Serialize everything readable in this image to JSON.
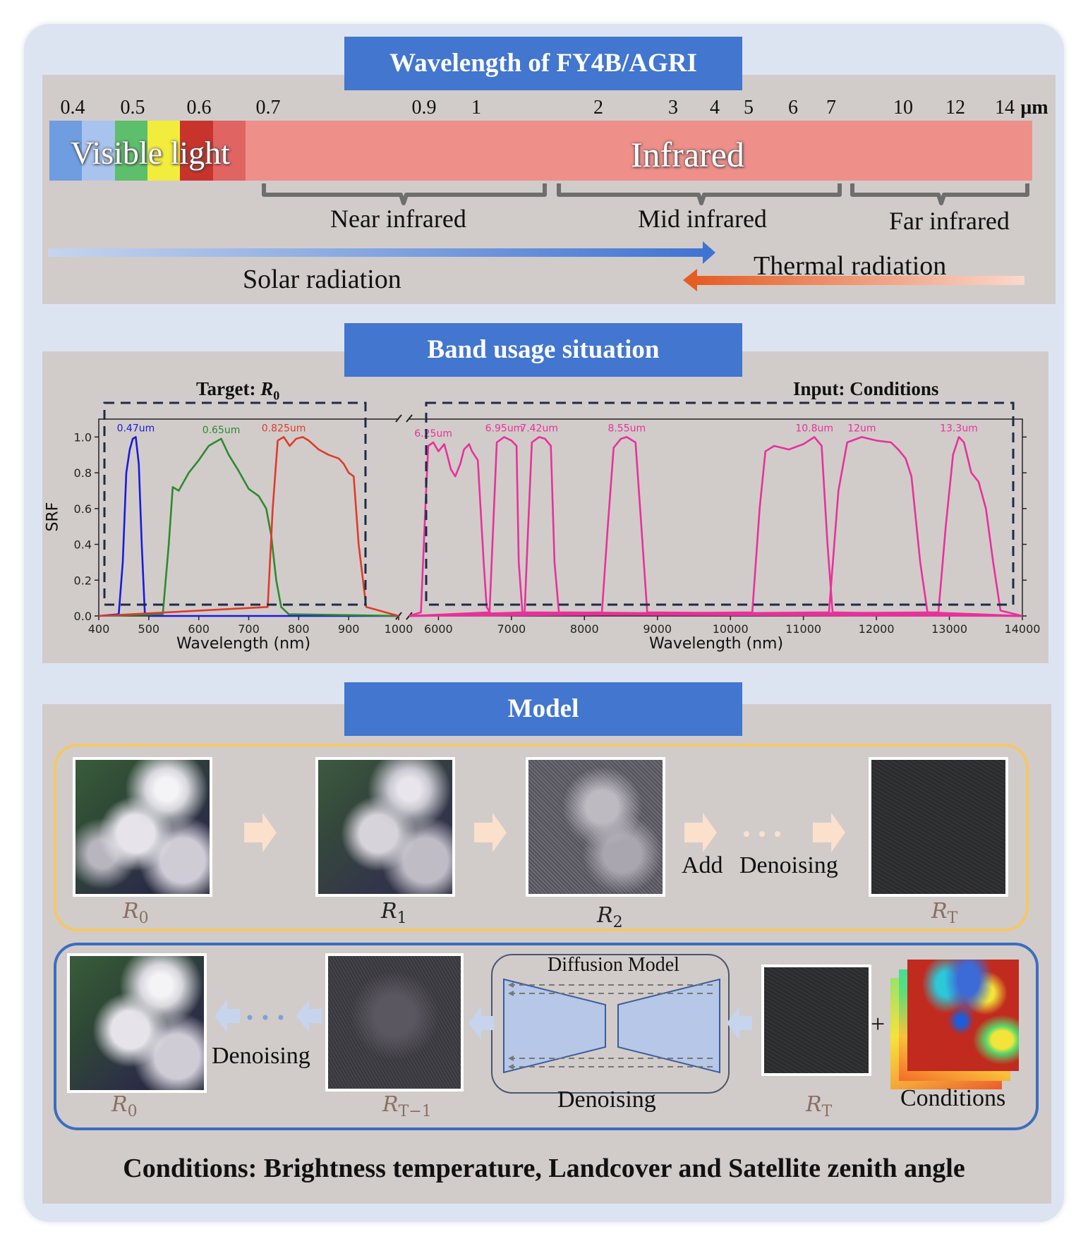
{
  "section1": {
    "title": "Wavelength of FY4B/AGRI",
    "ticks": [
      {
        "label": "0.4",
        "pos": 0.4
      },
      {
        "label": "0.5",
        "pos": 0.5
      },
      {
        "label": "0.6",
        "pos": 0.6
      },
      {
        "label": "0.7",
        "pos": 0.7
      },
      {
        "label": "0.9",
        "pos": 0.9
      },
      {
        "label": "1",
        "pos": 1
      },
      {
        "label": "2",
        "pos": 2
      },
      {
        "label": "3",
        "pos": 3
      },
      {
        "label": "4",
        "pos": 4
      },
      {
        "label": "5",
        "pos": 5
      },
      {
        "label": "6",
        "pos": 6
      },
      {
        "label": "7",
        "pos": 7
      },
      {
        "label": "10",
        "pos": 10
      },
      {
        "label": "12",
        "pos": 12
      },
      {
        "label": "14",
        "pos": 14
      }
    ],
    "unit": "μm",
    "visible_label": "Visible light",
    "infrared_label": "Infrared",
    "near_ir": "Near infrared",
    "mid_ir": "Mid infrared",
    "far_ir": "Far infrared",
    "solar": "Solar radiation",
    "thermal": "Thermal radiation",
    "spectrum_colors": [
      "#6f9de0",
      "#a9c3ef",
      "#5dbf6c",
      "#f2ec3c",
      "#c8342c",
      "#e06462"
    ],
    "infrared_color": "#ef8f8a"
  },
  "section2": {
    "title": "Band usage situation",
    "target_label": "Target: ",
    "target_math": "R",
    "target_sub": "0",
    "input_label": "Input: Conditions",
    "ylabel": "SRF",
    "xlabel": "Wavelength (nm)",
    "left_xticks": [
      "400",
      "500",
      "600",
      "700",
      "800",
      "900",
      "1000"
    ],
    "right_xticks": [
      "6000",
      "7000",
      "8000",
      "9000",
      "10000",
      "11000",
      "12000",
      "13000",
      "14000"
    ],
    "yticks": [
      "0.0",
      "0.2",
      "0.4",
      "0.6",
      "0.8",
      "1.0"
    ]
  },
  "chart_data": [
    {
      "type": "line",
      "xlabel": "Wavelength (nm)",
      "ylabel": "SRF",
      "xlim": [
        400,
        1000
      ],
      "ylim": [
        0,
        1.1
      ],
      "series": [
        {
          "name": "0.47um",
          "color": "#1a1adc",
          "x": [
            400,
            440,
            448,
            455,
            462,
            468,
            474,
            480,
            486,
            492,
            500,
            1000
          ],
          "y": [
            0,
            0.01,
            0.3,
            0.8,
            0.93,
            0.99,
            1.0,
            0.85,
            0.4,
            0.02,
            0,
            0
          ]
        },
        {
          "name": "0.65um",
          "color": "#2e8a2e",
          "x": [
            400,
            528,
            540,
            548,
            560,
            580,
            600,
            620,
            632,
            645,
            660,
            680,
            700,
            720,
            735,
            745,
            755,
            765,
            780,
            1000
          ],
          "y": [
            0,
            0.01,
            0.4,
            0.72,
            0.7,
            0.8,
            0.87,
            0.95,
            0.97,
            0.99,
            0.9,
            0.81,
            0.71,
            0.67,
            0.6,
            0.45,
            0.2,
            0.05,
            0.01,
            0
          ]
        },
        {
          "name": "0.825um",
          "color": "#e03a2a",
          "x": [
            400,
            738,
            748,
            758,
            770,
            782,
            795,
            808,
            820,
            840,
            860,
            880,
            890,
            900,
            910,
            920,
            935,
            1000
          ],
          "y": [
            0,
            0.05,
            0.6,
            0.98,
            1.0,
            0.95,
            0.99,
            1.0,
            0.98,
            0.93,
            0.9,
            0.88,
            0.85,
            0.8,
            0.78,
            0.4,
            0.05,
            0
          ]
        }
      ]
    },
    {
      "type": "line",
      "xlabel": "Wavelength (nm)",
      "xlim": [
        5600,
        14000
      ],
      "ylim": [
        0,
        1.1
      ],
      "series": [
        {
          "name": "6.25um",
          "color": "#e8319b",
          "x": [
            5600,
            5760,
            5820,
            5860,
            5930,
            6000,
            6080,
            6120,
            6170,
            6230,
            6300,
            6350,
            6420,
            6460,
            6540,
            6620,
            6660,
            6720,
            14000
          ],
          "y": [
            0,
            0.02,
            0.6,
            0.95,
            0.97,
            0.92,
            0.96,
            0.9,
            0.82,
            0.78,
            0.85,
            0.93,
            0.96,
            0.92,
            0.87,
            0.3,
            0.05,
            0.01,
            0
          ]
        },
        {
          "name": "6.95um",
          "color": "#e8319b",
          "x": [
            5600,
            6700,
            6750,
            6800,
            6900,
            7000,
            7070,
            7100,
            7150,
            14000
          ],
          "y": [
            0,
            0.02,
            0.5,
            0.97,
            1.0,
            0.98,
            0.95,
            0.3,
            0.02,
            0
          ]
        },
        {
          "name": "7.42um",
          "color": "#e8319b",
          "x": [
            5600,
            7180,
            7230,
            7280,
            7380,
            7460,
            7540,
            7590,
            7650,
            14000
          ],
          "y": [
            0,
            0.02,
            0.5,
            0.97,
            1.0,
            0.99,
            0.95,
            0.3,
            0.02,
            0
          ]
        },
        {
          "name": "8.55um",
          "color": "#e8319b",
          "x": [
            5600,
            8240,
            8320,
            8400,
            8500,
            8580,
            8700,
            8780,
            8860,
            14000
          ],
          "y": [
            0,
            0.02,
            0.5,
            0.94,
            0.99,
            1.0,
            0.97,
            0.5,
            0.02,
            0
          ]
        },
        {
          "name": "10.8um",
          "color": "#e8319b",
          "x": [
            5600,
            10300,
            10400,
            10480,
            10600,
            10800,
            11000,
            11150,
            11250,
            11330,
            11400,
            14000
          ],
          "y": [
            0,
            0.02,
            0.6,
            0.92,
            0.95,
            0.93,
            0.96,
            1.0,
            0.95,
            0.4,
            0.02,
            0
          ]
        },
        {
          "name": "12um",
          "color": "#e8319b",
          "x": [
            5600,
            11350,
            11480,
            11600,
            11800,
            12000,
            12200,
            12300,
            12400,
            12480,
            12600,
            12700,
            14000
          ],
          "y": [
            0,
            0.02,
            0.7,
            0.97,
            1.0,
            0.98,
            0.97,
            0.93,
            0.88,
            0.78,
            0.3,
            0.02,
            0
          ]
        },
        {
          "name": "13.3um",
          "color": "#e8319b",
          "x": [
            5600,
            12850,
            12950,
            13050,
            13130,
            13200,
            13300,
            13400,
            13500,
            13600,
            13700,
            14000
          ],
          "y": [
            0,
            0.02,
            0.5,
            0.9,
            1.0,
            0.97,
            0.8,
            0.75,
            0.6,
            0.3,
            0.03,
            0
          ]
        }
      ]
    }
  ],
  "section3": {
    "title": "Model",
    "r0": "R",
    "r0_sub": "0",
    "r1": "R",
    "r1_sub": "1",
    "r2": "R",
    "r2_sub": "2",
    "rt": "R",
    "rt_sub": "T",
    "rt1": "R",
    "rt1_sub": "T−1",
    "add_label": "Add",
    "denoising_label": "Denoising",
    "diffusion_model": "Diffusion Model",
    "model_denoising": "Denoising",
    "back_denoising": "Denoising",
    "plus": "+",
    "conditions_label": "Conditions",
    "footer": "Conditions: Brightness temperature, Landcover and Satellite zenith angle",
    "forward_border_color": "#f2c867",
    "reverse_border_color": "#3a6ec0"
  }
}
